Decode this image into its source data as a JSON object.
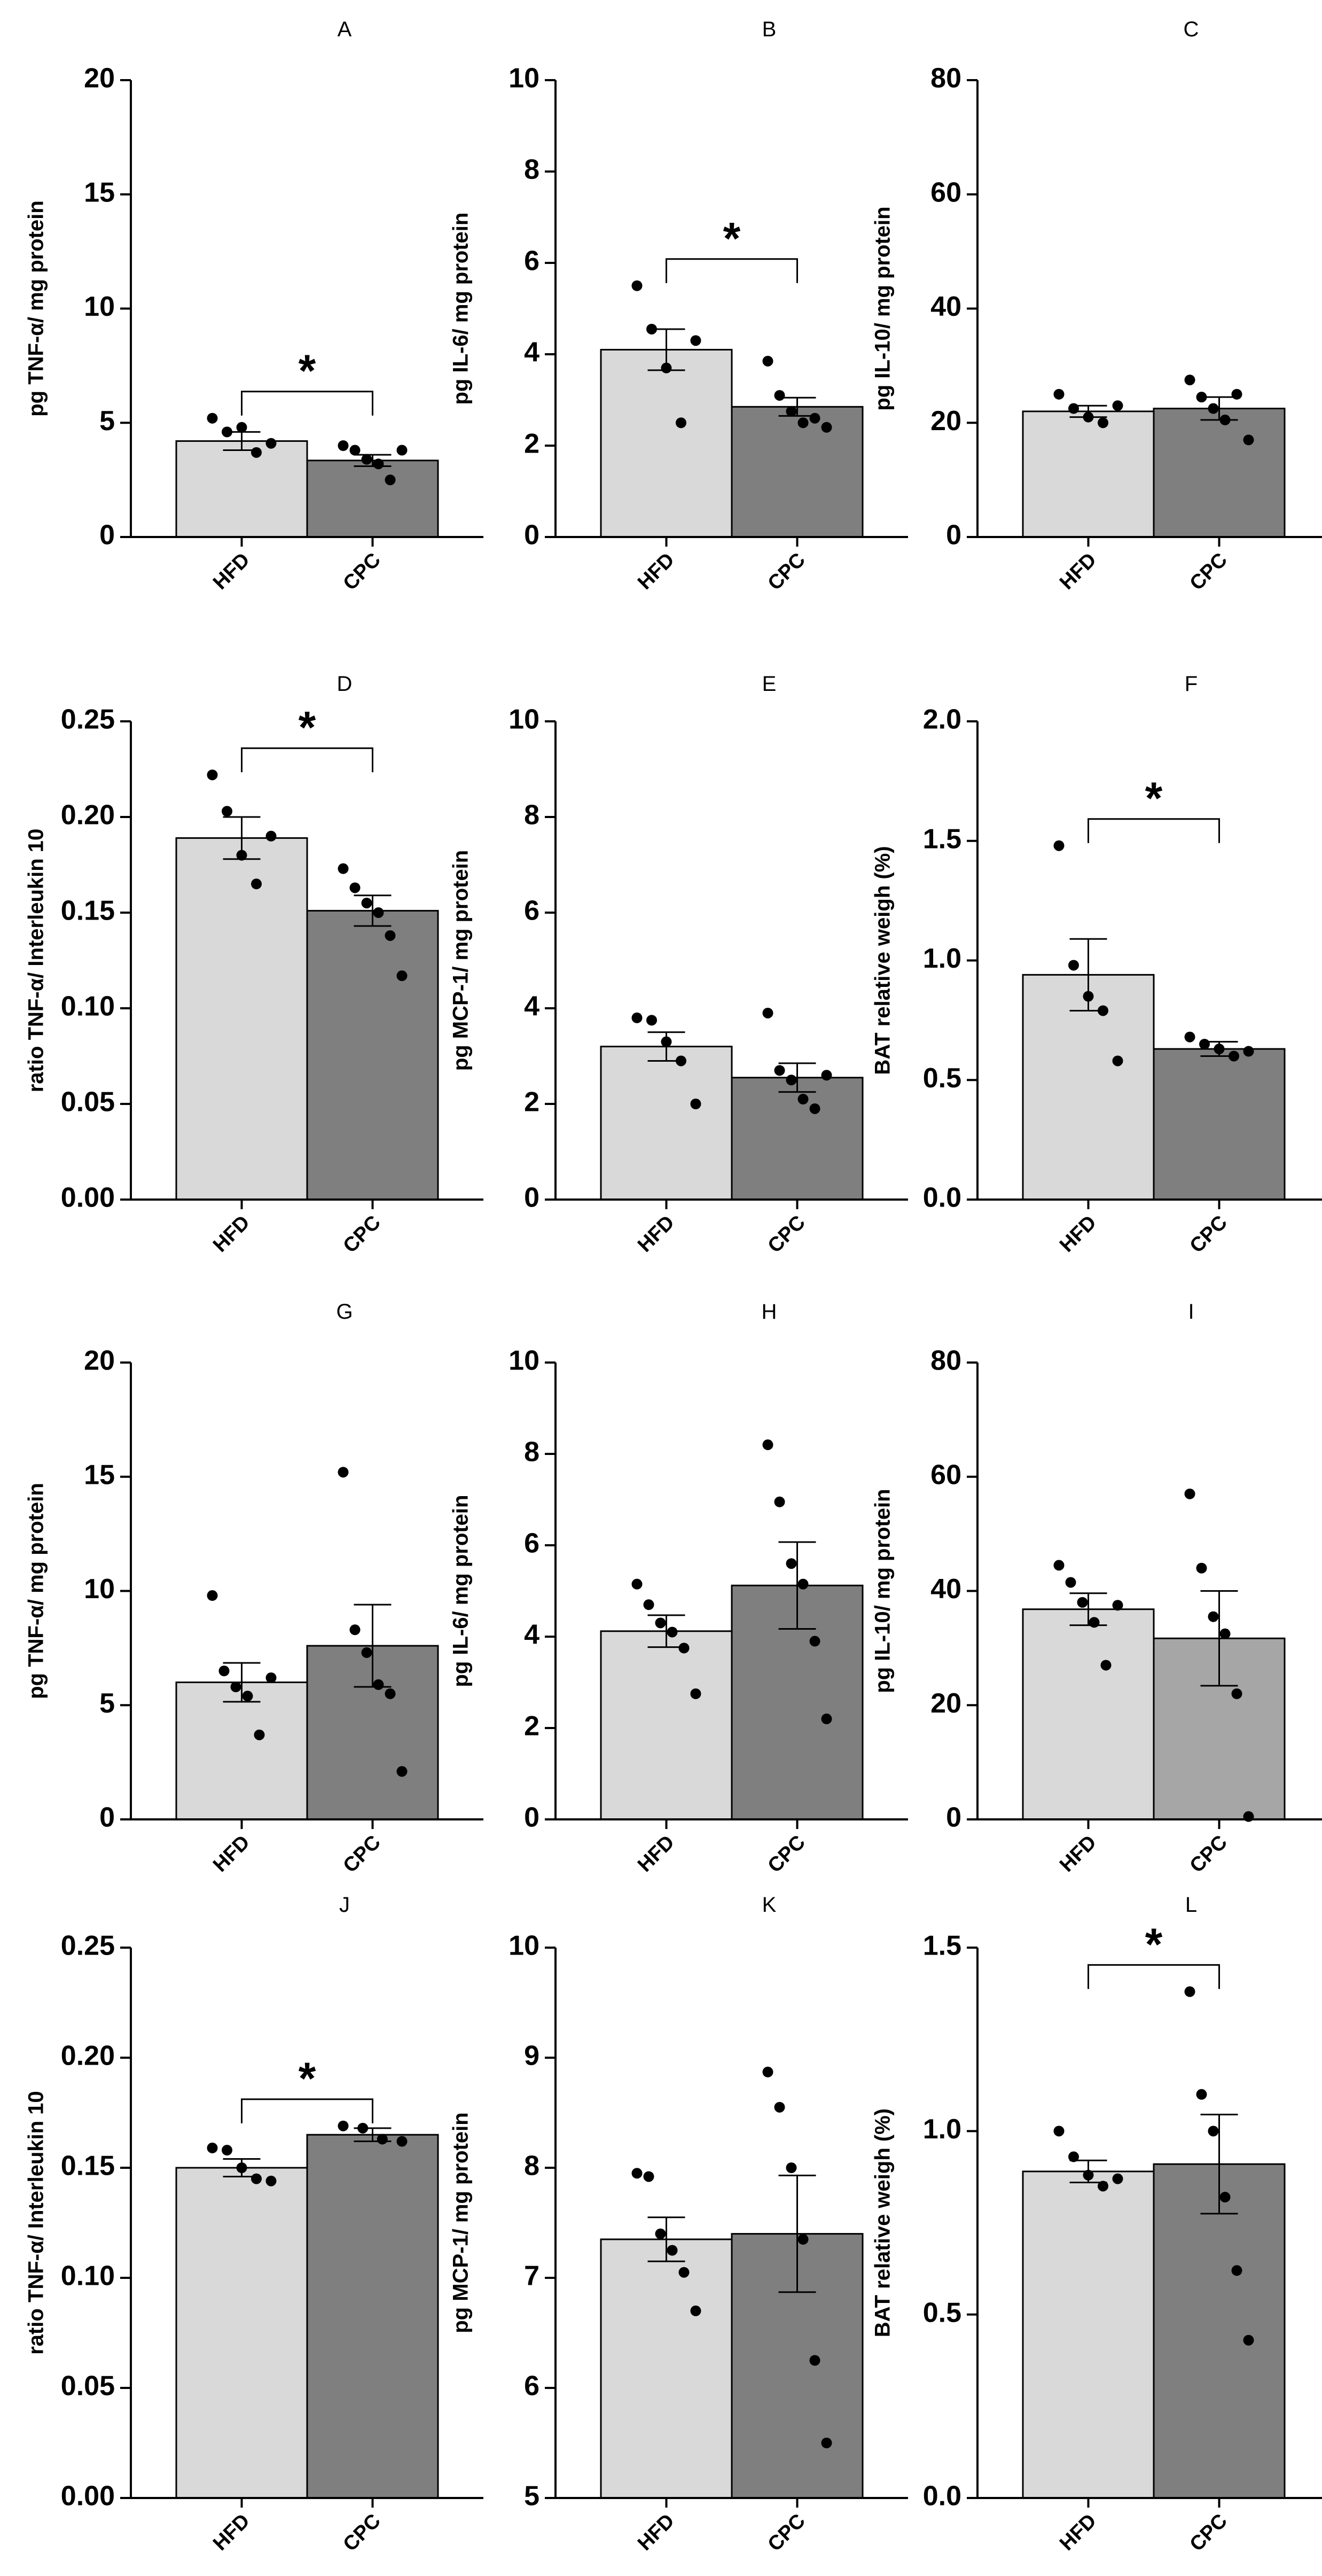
{
  "figure_id": "figure",
  "colors": {
    "hfd_bar": "#d9d9d9",
    "cpc_bar_dark": "#7f7f7f",
    "cpc_bar_light": "#a6a6a6",
    "axis": "#000000",
    "point": "#000000"
  },
  "chart_data": [
    {
      "type": "bar",
      "panel": "A",
      "title": "A",
      "ylabel": "pg TNF-α/ mg protein",
      "categories": [
        "HFD",
        "CPC"
      ],
      "values": [
        4.2,
        3.35
      ],
      "sem": [
        0.4,
        0.25
      ],
      "points": [
        [
          5.2,
          4.6,
          4.8,
          3.7,
          4.1
        ],
        [
          4.0,
          3.8,
          3.4,
          3.2,
          2.5,
          3.8
        ]
      ],
      "ylim": [
        0,
        20
      ],
      "yticks": [
        0,
        5,
        10,
        15,
        20
      ],
      "ytick_labels": [
        "0",
        "5",
        "10",
        "15",
        "20"
      ],
      "significance": "*",
      "cpc_color": "dark"
    },
    {
      "type": "bar",
      "panel": "B",
      "title": "B",
      "ylabel": "pg IL-6/ mg protein",
      "categories": [
        "HFD",
        "CPC"
      ],
      "values": [
        4.1,
        2.85
      ],
      "sem": [
        0.45,
        0.2
      ],
      "points": [
        [
          5.5,
          4.55,
          3.7,
          2.5,
          4.3
        ],
        [
          3.85,
          3.1,
          2.75,
          2.5,
          2.6,
          2.4
        ]
      ],
      "ylim": [
        0,
        10
      ],
      "yticks": [
        0,
        2,
        4,
        6,
        8,
        10
      ],
      "ytick_labels": [
        "0",
        "2",
        "4",
        "6",
        "8",
        "10"
      ],
      "significance": "*",
      "cpc_color": "dark"
    },
    {
      "type": "bar",
      "panel": "C",
      "title": "C",
      "ylabel": "pg IL-10/ mg protein",
      "categories": [
        "HFD",
        "CPC"
      ],
      "values": [
        22.0,
        22.5
      ],
      "sem": [
        1.0,
        2.0
      ],
      "points": [
        [
          25.0,
          22.5,
          21.0,
          20.0,
          23.0
        ],
        [
          27.5,
          24.5,
          22.5,
          20.5,
          25.0,
          17.0
        ]
      ],
      "ylim": [
        0,
        80
      ],
      "yticks": [
        0,
        20,
        40,
        60,
        80
      ],
      "ytick_labels": [
        "0",
        "20",
        "40",
        "60",
        "80"
      ],
      "significance": null,
      "cpc_color": "dark"
    },
    {
      "type": "bar",
      "panel": "D",
      "title": "D",
      "ylabel": "ratio TNF-α/ Interleukin 10",
      "categories": [
        "HFD",
        "CPC"
      ],
      "values": [
        0.189,
        0.151
      ],
      "sem": [
        0.011,
        0.008
      ],
      "points": [
        [
          0.222,
          0.203,
          0.18,
          0.165,
          0.19
        ],
        [
          0.173,
          0.163,
          0.155,
          0.15,
          0.138,
          0.117
        ]
      ],
      "ylim": [
        0,
        0.25
      ],
      "yticks": [
        0,
        0.05,
        0.1,
        0.15,
        0.2,
        0.25
      ],
      "ytick_labels": [
        "0.00",
        "0.05",
        "0.10",
        "0.15",
        "0.20",
        "0.25"
      ],
      "significance": "*",
      "cpc_color": "dark"
    },
    {
      "type": "bar",
      "panel": "E",
      "title": "E",
      "ylabel": "pg MCP-1/ mg protein",
      "categories": [
        "HFD",
        "CPC"
      ],
      "values": [
        3.2,
        2.55
      ],
      "sem": [
        0.3,
        0.3
      ],
      "points": [
        [
          3.8,
          3.75,
          3.3,
          2.9,
          2.0
        ],
        [
          3.9,
          2.7,
          2.5,
          2.1,
          1.9,
          2.6
        ]
      ],
      "ylim": [
        0,
        10
      ],
      "yticks": [
        0,
        2,
        4,
        6,
        8,
        10
      ],
      "ytick_labels": [
        "0",
        "2",
        "4",
        "6",
        "8",
        "10"
      ],
      "significance": null,
      "cpc_color": "dark"
    },
    {
      "type": "bar",
      "panel": "F",
      "title": "F",
      "ylabel": "BAT relative weigh (%)",
      "categories": [
        "HFD",
        "CPC"
      ],
      "values": [
        0.94,
        0.63
      ],
      "sem": [
        0.15,
        0.03
      ],
      "points": [
        [
          1.48,
          0.98,
          0.85,
          0.79,
          0.58
        ],
        [
          0.68,
          0.65,
          0.63,
          0.6,
          0.62
        ]
      ],
      "ylim": [
        0,
        2.0
      ],
      "yticks": [
        0,
        0.5,
        1.0,
        1.5,
        2.0
      ],
      "ytick_labels": [
        "0.0",
        "0.5",
        "1.0",
        "1.5",
        "2.0"
      ],
      "significance": "*",
      "cpc_color": "dark"
    },
    {
      "type": "bar",
      "panel": "G",
      "title": "G",
      "ylabel": "pg TNF-α/ mg protein",
      "categories": [
        "HFD",
        "CPC"
      ],
      "values": [
        6.0,
        7.6
      ],
      "sem": [
        0.85,
        1.8
      ],
      "points": [
        [
          9.8,
          6.5,
          5.8,
          5.4,
          3.7,
          6.2
        ],
        [
          15.2,
          8.3,
          7.3,
          5.9,
          5.5,
          2.1
        ]
      ],
      "ylim": [
        0,
        20
      ],
      "yticks": [
        0,
        5,
        10,
        15,
        20
      ],
      "ytick_labels": [
        "0",
        "5",
        "10",
        "15",
        "20"
      ],
      "significance": null,
      "cpc_color": "dark"
    },
    {
      "type": "bar",
      "panel": "H",
      "title": "H",
      "ylabel": "pg IL-6/ mg protein",
      "categories": [
        "HFD",
        "CPC"
      ],
      "values": [
        4.12,
        5.12
      ],
      "sem": [
        0.35,
        0.95
      ],
      "points": [
        [
          5.15,
          4.7,
          4.3,
          4.1,
          3.75,
          2.75
        ],
        [
          8.2,
          6.95,
          5.6,
          5.15,
          3.9,
          2.2
        ]
      ],
      "ylim": [
        0,
        10
      ],
      "yticks": [
        0,
        2,
        4,
        6,
        8,
        10
      ],
      "ytick_labels": [
        "0",
        "2",
        "4",
        "6",
        "8",
        "10"
      ],
      "significance": null,
      "cpc_color": "dark"
    },
    {
      "type": "bar",
      "panel": "I",
      "title": "I",
      "ylabel": "pg IL-10/ mg protein",
      "categories": [
        "HFD",
        "CPC"
      ],
      "values": [
        36.8,
        31.7
      ],
      "sem": [
        2.8,
        8.3
      ],
      "points": [
        [
          44.5,
          41.5,
          38.0,
          34.5,
          27.0,
          37.5
        ],
        [
          57.0,
          44.0,
          35.5,
          32.5,
          22.0,
          0.5
        ]
      ],
      "ylim": [
        0,
        80
      ],
      "yticks": [
        0,
        20,
        40,
        60,
        80
      ],
      "ytick_labels": [
        "0",
        "20",
        "40",
        "60",
        "80"
      ],
      "significance": null,
      "cpc_color": "light"
    },
    {
      "type": "bar",
      "panel": "J",
      "title": "J",
      "ylabel": "ratio TNF-α/ Interleukin 10",
      "categories": [
        "HFD",
        "CPC"
      ],
      "values": [
        0.15,
        0.165
      ],
      "sem": [
        0.004,
        0.003
      ],
      "points": [
        [
          0.159,
          0.158,
          0.15,
          0.145,
          0.144
        ],
        [
          0.169,
          0.168,
          0.163,
          0.162
        ]
      ],
      "ylim": [
        0,
        0.25
      ],
      "yticks": [
        0,
        0.05,
        0.1,
        0.15,
        0.2,
        0.25
      ],
      "ytick_labels": [
        "0.00",
        "0.05",
        "0.10",
        "0.15",
        "0.20",
        "0.25"
      ],
      "significance": "*",
      "cpc_color": "dark"
    },
    {
      "type": "bar",
      "panel": "K",
      "title": "K",
      "ylabel": "pg MCP-1/ mg protein",
      "categories": [
        "HFD",
        "CPC"
      ],
      "values": [
        7.35,
        7.4
      ],
      "sem": [
        0.2,
        0.53
      ],
      "points": [
        [
          7.95,
          7.92,
          7.4,
          7.25,
          7.05,
          6.7
        ],
        [
          8.87,
          8.55,
          8.0,
          7.35,
          6.25,
          5.5
        ]
      ],
      "ylim": [
        5,
        10
      ],
      "yticks": [
        5,
        6,
        7,
        8,
        9,
        10
      ],
      "ytick_labels": [
        "5",
        "6",
        "7",
        "8",
        "9",
        "10"
      ],
      "significance": null,
      "cpc_color": "dark"
    },
    {
      "type": "bar",
      "panel": "L",
      "title": "L",
      "ylabel": "BAT relative weigh (%)",
      "categories": [
        "HFD",
        "CPC"
      ],
      "values": [
        0.89,
        0.91
      ],
      "sem": [
        0.03,
        0.135
      ],
      "points": [
        [
          1.0,
          0.93,
          0.88,
          0.85,
          0.87
        ],
        [
          1.38,
          1.1,
          1.0,
          0.82,
          0.62,
          0.43
        ]
      ],
      "ylim": [
        0,
        1.5
      ],
      "yticks": [
        0,
        0.5,
        1.0,
        1.5
      ],
      "ytick_labels": [
        "0.0",
        "0.5",
        "1.0",
        "1.5"
      ],
      "significance": "*",
      "cpc_color": "dark"
    }
  ]
}
